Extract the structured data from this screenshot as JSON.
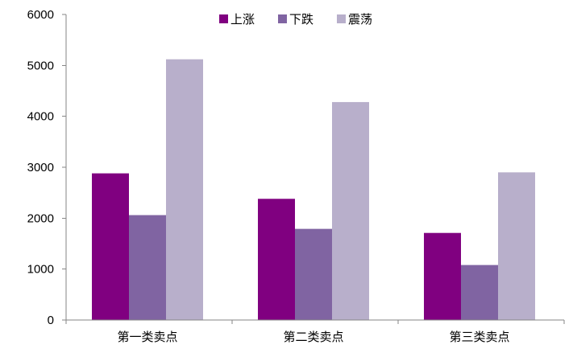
{
  "chart_data": {
    "type": "bar",
    "title": "",
    "xlabel": "",
    "ylabel": "",
    "categories": [
      "第一类卖点",
      "第二类卖点",
      "第三类卖点"
    ],
    "series": [
      {
        "name": "上涨",
        "values": [
          2880,
          2380,
          1710
        ],
        "color": "#800080"
      },
      {
        "name": "下跌",
        "values": [
          2060,
          1790,
          1080
        ],
        "color": "#8064A2"
      },
      {
        "name": "震荡",
        "values": [
          5120,
          4280,
          2900
        ],
        "color": "#B8AFCB"
      }
    ],
    "ylim": [
      0,
      6000
    ],
    "yticks": [
      0,
      1000,
      2000,
      3000,
      4000,
      5000,
      6000
    ],
    "grid": false,
    "legend_position": "top-center"
  }
}
